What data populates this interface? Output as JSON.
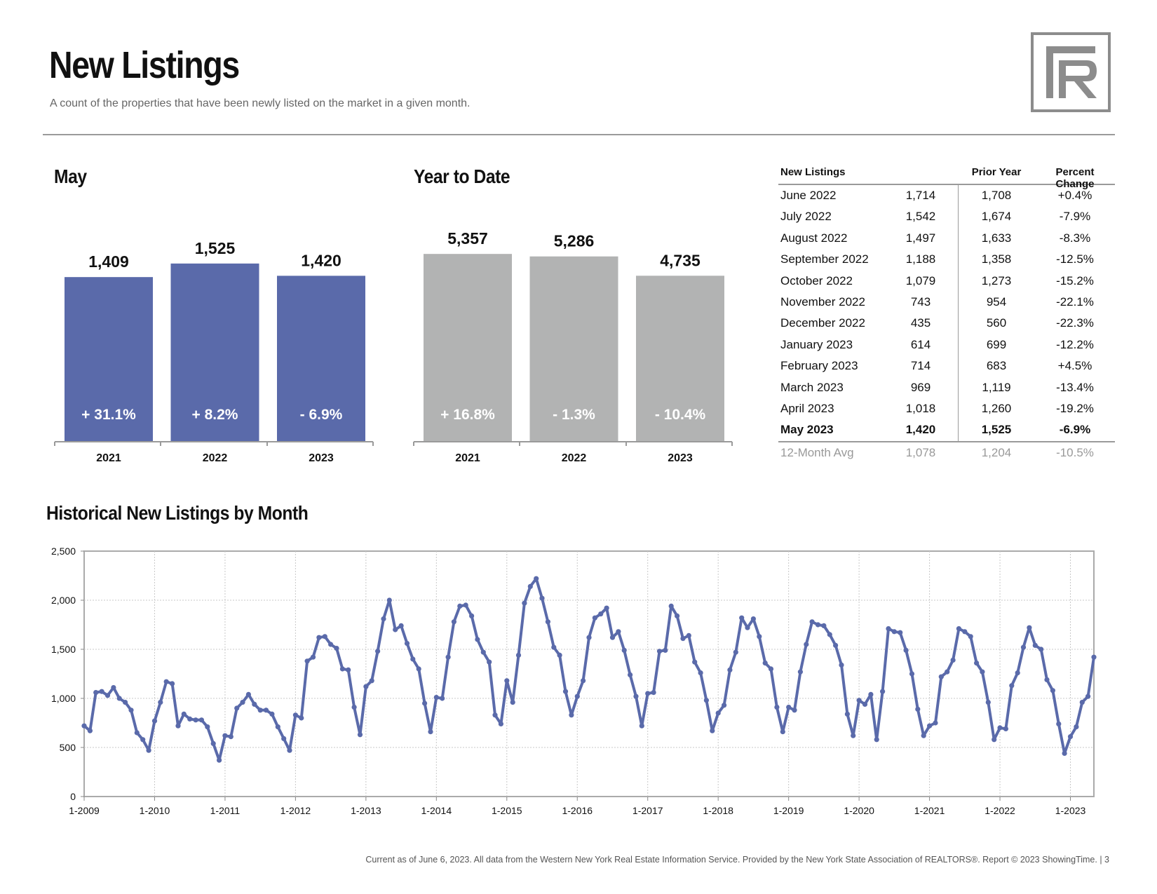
{
  "header": {
    "title": "New Listings",
    "subtitle": "A count of the properties that have been newly listed on the market in a given month."
  },
  "logo": {
    "icon": "rr-monogram-logo",
    "color": "#8c8c8c"
  },
  "sections": {
    "month": "May",
    "ytd": "Year to Date",
    "historical": "Historical New Listings by Month"
  },
  "colors": {
    "blue": "#5a6aaa",
    "gray": "#b2b3b3",
    "axis": "#9a9a9a"
  },
  "chart_data": [
    {
      "type": "bar",
      "title": "May",
      "categories": [
        "2021",
        "2022",
        "2023"
      ],
      "values": [
        1409,
        1525,
        1420
      ],
      "value_labels": [
        "1,409",
        "1,525",
        "1,420"
      ],
      "change_labels": [
        "+ 31.1%",
        "+ 8.2%",
        "- 6.9%"
      ],
      "color": "#5a6aaa",
      "ylim": [
        0,
        1800
      ]
    },
    {
      "type": "bar",
      "title": "Year to Date",
      "categories": [
        "2021",
        "2022",
        "2023"
      ],
      "values": [
        5357,
        5286,
        4735
      ],
      "value_labels": [
        "5,357",
        "5,286",
        "4,735"
      ],
      "change_labels": [
        "+ 16.8%",
        "- 1.3%",
        "- 10.4%"
      ],
      "color": "#b2b3b3",
      "ylim": [
        0,
        6000
      ]
    },
    {
      "type": "line",
      "title": "Historical New Listings by Month",
      "x_start": "1-2009",
      "x_tick_labels": [
        "1-2009",
        "1-2010",
        "1-2011",
        "1-2012",
        "1-2013",
        "1-2014",
        "1-2015",
        "1-2016",
        "1-2017",
        "1-2018",
        "1-2019",
        "1-2020",
        "1-2021",
        "1-2022",
        "1-2023"
      ],
      "y_tick_labels": [
        "0",
        "500",
        "1,000",
        "1,500",
        "2,000",
        "2,500"
      ],
      "ylim": [
        0,
        2500
      ],
      "grid": true,
      "color": "#5a6aaa",
      "values": [
        720,
        670,
        1060,
        1070,
        1030,
        1110,
        1000,
        960,
        880,
        650,
        580,
        470,
        770,
        960,
        1170,
        1150,
        720,
        840,
        790,
        780,
        780,
        710,
        540,
        370,
        620,
        610,
        900,
        960,
        1040,
        940,
        880,
        880,
        840,
        710,
        590,
        470,
        830,
        800,
        1380,
        1420,
        1620,
        1630,
        1550,
        1510,
        1300,
        1290,
        910,
        630,
        1120,
        1180,
        1480,
        1810,
        2000,
        1700,
        1740,
        1560,
        1400,
        1300,
        950,
        660,
        1010,
        1000,
        1420,
        1780,
        1940,
        1950,
        1840,
        1600,
        1470,
        1370,
        830,
        740,
        1180,
        960,
        1440,
        1970,
        2140,
        2220,
        2020,
        1780,
        1520,
        1440,
        1070,
        830,
        1020,
        1180,
        1620,
        1820,
        1860,
        1920,
        1620,
        1680,
        1490,
        1240,
        1020,
        720,
        1050,
        1060,
        1480,
        1490,
        1940,
        1840,
        1610,
        1640,
        1370,
        1260,
        980,
        670,
        850,
        930,
        1290,
        1470,
        1820,
        1720,
        1810,
        1630,
        1360,
        1300,
        910,
        660,
        910,
        880,
        1270,
        1550,
        1780,
        1750,
        1740,
        1650,
        1540,
        1340,
        840,
        620,
        980,
        940,
        1040,
        580,
        1070,
        1710,
        1680,
        1670,
        1490,
        1250,
        890,
        620,
        720,
        750,
        1220,
        1270,
        1390,
        1710,
        1680,
        1630,
        1360,
        1270,
        960,
        580,
        700,
        690,
        1130,
        1260,
        1520,
        1720,
        1540,
        1500,
        1190,
        1080,
        740,
        440,
        610,
        710,
        960,
        1020,
        1420
      ]
    }
  ],
  "table": {
    "headers": {
      "label": "New Listings",
      "prior": "Prior Year",
      "pct": "Percent Change"
    },
    "rows": [
      {
        "label": "June 2022",
        "current": "1,714",
        "prior": "1,708",
        "pct": "+0.4%"
      },
      {
        "label": "July 2022",
        "current": "1,542",
        "prior": "1,674",
        "pct": "-7.9%"
      },
      {
        "label": "August 2022",
        "current": "1,497",
        "prior": "1,633",
        "pct": "-8.3%"
      },
      {
        "label": "September 2022",
        "current": "1,188",
        "prior": "1,358",
        "pct": "-12.5%"
      },
      {
        "label": "October 2022",
        "current": "1,079",
        "prior": "1,273",
        "pct": "-15.2%"
      },
      {
        "label": "November 2022",
        "current": "743",
        "prior": "954",
        "pct": "-22.1%"
      },
      {
        "label": "December 2022",
        "current": "435",
        "prior": "560",
        "pct": "-22.3%"
      },
      {
        "label": "January 2023",
        "current": "614",
        "prior": "699",
        "pct": "-12.2%"
      },
      {
        "label": "February 2023",
        "current": "714",
        "prior": "683",
        "pct": "+4.5%"
      },
      {
        "label": "March 2023",
        "current": "969",
        "prior": "1,119",
        "pct": "-13.4%"
      },
      {
        "label": "April 2023",
        "current": "1,018",
        "prior": "1,260",
        "pct": "-19.2%"
      },
      {
        "label": "May 2023",
        "current": "1,420",
        "prior": "1,525",
        "pct": "-6.9%"
      },
      {
        "label": "12-Month Avg",
        "current": "1,078",
        "prior": "1,204",
        "pct": "-10.5%"
      }
    ]
  },
  "footer": {
    "text": "Current as of June 6, 2023. All data from the Western New York Real Estate Information Service. Provided by the New York State Association of REALTORS®. Report © 2023 ShowingTime.  |  3"
  }
}
